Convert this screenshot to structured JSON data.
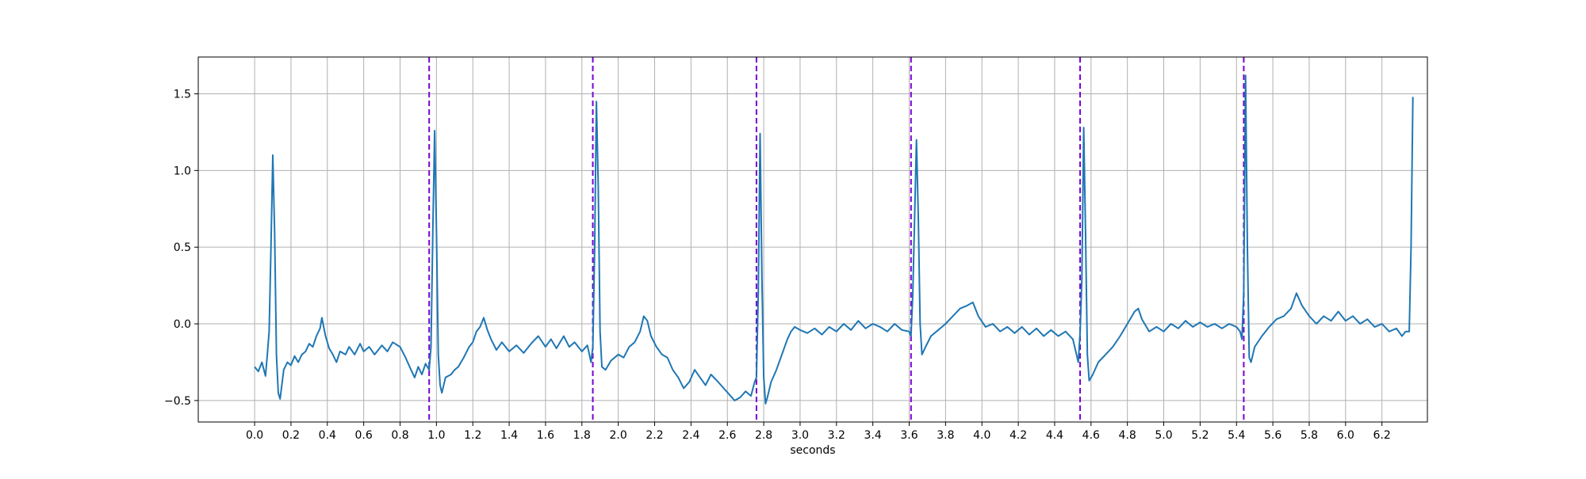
{
  "chart_data": {
    "type": "line",
    "title": "",
    "xlabel": "seconds",
    "ylabel": "",
    "xlim": [
      -0.31,
      6.45
    ],
    "ylim": [
      -0.64,
      1.74
    ],
    "grid": true,
    "xticks": [
      0.0,
      0.2,
      0.4,
      0.6,
      0.8,
      1.0,
      1.2,
      1.4,
      1.6,
      1.8,
      2.0,
      2.2,
      2.4,
      2.6,
      2.8,
      3.0,
      3.2,
      3.4,
      3.6,
      3.8,
      4.0,
      4.2,
      4.4,
      4.6,
      4.8,
      5.0,
      5.2,
      5.4,
      5.6,
      5.8,
      6.0,
      6.2
    ],
    "xtick_labels": [
      "0.0",
      "0.2",
      "0.4",
      "0.6",
      "0.8",
      "1.0",
      "1.2",
      "1.4",
      "1.6",
      "1.8",
      "2.0",
      "2.2",
      "2.4",
      "2.6",
      "2.8",
      "3.0",
      "3.2",
      "3.4",
      "3.6",
      "3.8",
      "4.0",
      "4.2",
      "4.4",
      "4.6",
      "4.8",
      "5.0",
      "5.2",
      "5.4",
      "5.6",
      "5.8",
      "6.0",
      "6.2"
    ],
    "yticks": [
      -0.5,
      0.0,
      0.5,
      1.0,
      1.5
    ],
    "ytick_labels": [
      "−0.5",
      "0.0",
      "0.5",
      "1.0",
      "1.5"
    ],
    "markers": {
      "style": "dashed",
      "color": "#7b00d4",
      "x": [
        0.96,
        1.86,
        2.76,
        3.61,
        4.54,
        5.44
      ]
    },
    "series": [
      {
        "color": "#1f77b4",
        "points": [
          [
            0.0,
            -0.28
          ],
          [
            0.02,
            -0.31
          ],
          [
            0.04,
            -0.25
          ],
          [
            0.06,
            -0.34
          ],
          [
            0.07,
            -0.2
          ],
          [
            0.08,
            -0.05
          ],
          [
            0.09,
            0.5
          ],
          [
            0.1,
            1.1
          ],
          [
            0.11,
            0.6
          ],
          [
            0.12,
            -0.2
          ],
          [
            0.13,
            -0.45
          ],
          [
            0.14,
            -0.49
          ],
          [
            0.16,
            -0.3
          ],
          [
            0.18,
            -0.25
          ],
          [
            0.2,
            -0.27
          ],
          [
            0.22,
            -0.21
          ],
          [
            0.24,
            -0.25
          ],
          [
            0.26,
            -0.2
          ],
          [
            0.28,
            -0.18
          ],
          [
            0.3,
            -0.13
          ],
          [
            0.32,
            -0.15
          ],
          [
            0.34,
            -0.08
          ],
          [
            0.36,
            -0.03
          ],
          [
            0.37,
            0.04
          ],
          [
            0.39,
            -0.08
          ],
          [
            0.41,
            -0.16
          ],
          [
            0.43,
            -0.2
          ],
          [
            0.45,
            -0.25
          ],
          [
            0.47,
            -0.18
          ],
          [
            0.5,
            -0.2
          ],
          [
            0.52,
            -0.15
          ],
          [
            0.55,
            -0.2
          ],
          [
            0.58,
            -0.13
          ],
          [
            0.6,
            -0.18
          ],
          [
            0.63,
            -0.15
          ],
          [
            0.66,
            -0.2
          ],
          [
            0.7,
            -0.14
          ],
          [
            0.73,
            -0.18
          ],
          [
            0.76,
            -0.12
          ],
          [
            0.8,
            -0.15
          ],
          [
            0.83,
            -0.22
          ],
          [
            0.86,
            -0.3
          ],
          [
            0.88,
            -0.35
          ],
          [
            0.9,
            -0.28
          ],
          [
            0.92,
            -0.33
          ],
          [
            0.94,
            -0.26
          ],
          [
            0.96,
            -0.3
          ],
          [
            0.97,
            -0.15
          ],
          [
            0.98,
            0.6
          ],
          [
            0.99,
            1.26
          ],
          [
            1.0,
            0.6
          ],
          [
            1.01,
            -0.2
          ],
          [
            1.02,
            -0.4
          ],
          [
            1.03,
            -0.45
          ],
          [
            1.05,
            -0.35
          ],
          [
            1.08,
            -0.33
          ],
          [
            1.1,
            -0.3
          ],
          [
            1.12,
            -0.28
          ],
          [
            1.15,
            -0.22
          ],
          [
            1.18,
            -0.15
          ],
          [
            1.2,
            -0.12
          ],
          [
            1.22,
            -0.05
          ],
          [
            1.24,
            -0.02
          ],
          [
            1.26,
            0.04
          ],
          [
            1.28,
            -0.04
          ],
          [
            1.3,
            -0.1
          ],
          [
            1.33,
            -0.17
          ],
          [
            1.36,
            -0.12
          ],
          [
            1.4,
            -0.18
          ],
          [
            1.44,
            -0.14
          ],
          [
            1.48,
            -0.19
          ],
          [
            1.52,
            -0.13
          ],
          [
            1.56,
            -0.08
          ],
          [
            1.6,
            -0.15
          ],
          [
            1.63,
            -0.1
          ],
          [
            1.66,
            -0.16
          ],
          [
            1.7,
            -0.08
          ],
          [
            1.73,
            -0.15
          ],
          [
            1.76,
            -0.12
          ],
          [
            1.8,
            -0.18
          ],
          [
            1.83,
            -0.14
          ],
          [
            1.85,
            -0.25
          ],
          [
            1.86,
            -0.15
          ],
          [
            1.87,
            0.5
          ],
          [
            1.88,
            1.45
          ],
          [
            1.89,
            0.9
          ],
          [
            1.9,
            -0.05
          ],
          [
            1.91,
            -0.28
          ],
          [
            1.93,
            -0.3
          ],
          [
            1.96,
            -0.24
          ],
          [
            2.0,
            -0.2
          ],
          [
            2.03,
            -0.22
          ],
          [
            2.06,
            -0.15
          ],
          [
            2.09,
            -0.12
          ],
          [
            2.12,
            -0.05
          ],
          [
            2.14,
            0.05
          ],
          [
            2.16,
            0.02
          ],
          [
            2.18,
            -0.08
          ],
          [
            2.21,
            -0.15
          ],
          [
            2.24,
            -0.2
          ],
          [
            2.27,
            -0.22
          ],
          [
            2.3,
            -0.3
          ],
          [
            2.33,
            -0.35
          ],
          [
            2.36,
            -0.42
          ],
          [
            2.39,
            -0.38
          ],
          [
            2.42,
            -0.3
          ],
          [
            2.45,
            -0.35
          ],
          [
            2.48,
            -0.4
          ],
          [
            2.51,
            -0.33
          ],
          [
            2.55,
            -0.38
          ],
          [
            2.58,
            -0.42
          ],
          [
            2.61,
            -0.46
          ],
          [
            2.64,
            -0.5
          ],
          [
            2.67,
            -0.48
          ],
          [
            2.7,
            -0.44
          ],
          [
            2.73,
            -0.47
          ],
          [
            2.75,
            -0.38
          ],
          [
            2.76,
            -0.35
          ],
          [
            2.77,
            0.2
          ],
          [
            2.78,
            1.24
          ],
          [
            2.79,
            0.3
          ],
          [
            2.8,
            -0.35
          ],
          [
            2.81,
            -0.52
          ],
          [
            2.82,
            -0.48
          ],
          [
            2.84,
            -0.38
          ],
          [
            2.87,
            -0.3
          ],
          [
            2.9,
            -0.2
          ],
          [
            2.93,
            -0.1
          ],
          [
            2.95,
            -0.05
          ],
          [
            2.97,
            -0.02
          ],
          [
            3.0,
            -0.04
          ],
          [
            3.04,
            -0.06
          ],
          [
            3.08,
            -0.03
          ],
          [
            3.12,
            -0.07
          ],
          [
            3.16,
            -0.02
          ],
          [
            3.2,
            -0.05
          ],
          [
            3.24,
            0.0
          ],
          [
            3.28,
            -0.04
          ],
          [
            3.32,
            0.02
          ],
          [
            3.36,
            -0.03
          ],
          [
            3.4,
            0.0
          ],
          [
            3.44,
            -0.02
          ],
          [
            3.48,
            -0.05
          ],
          [
            3.52,
            0.0
          ],
          [
            3.56,
            -0.04
          ],
          [
            3.6,
            -0.05
          ],
          [
            3.61,
            -0.08
          ],
          [
            3.62,
            0.2
          ],
          [
            3.63,
            0.7
          ],
          [
            3.64,
            1.2
          ],
          [
            3.65,
            0.7
          ],
          [
            3.66,
            0.0
          ],
          [
            3.67,
            -0.2
          ],
          [
            3.69,
            -0.15
          ],
          [
            3.72,
            -0.08
          ],
          [
            3.76,
            -0.04
          ],
          [
            3.8,
            0.0
          ],
          [
            3.84,
            0.05
          ],
          [
            3.88,
            0.1
          ],
          [
            3.92,
            0.12
          ],
          [
            3.95,
            0.14
          ],
          [
            3.98,
            0.05
          ],
          [
            4.02,
            -0.02
          ],
          [
            4.06,
            0.0
          ],
          [
            4.1,
            -0.05
          ],
          [
            4.14,
            -0.02
          ],
          [
            4.18,
            -0.06
          ],
          [
            4.22,
            -0.02
          ],
          [
            4.26,
            -0.07
          ],
          [
            4.3,
            -0.03
          ],
          [
            4.34,
            -0.08
          ],
          [
            4.38,
            -0.04
          ],
          [
            4.42,
            -0.08
          ],
          [
            4.46,
            -0.05
          ],
          [
            4.5,
            -0.1
          ],
          [
            4.53,
            -0.25
          ],
          [
            4.54,
            -0.05
          ],
          [
            4.55,
            0.3
          ],
          [
            4.56,
            1.28
          ],
          [
            4.57,
            0.6
          ],
          [
            4.58,
            -0.2
          ],
          [
            4.59,
            -0.37
          ],
          [
            4.61,
            -0.33
          ],
          [
            4.64,
            -0.25
          ],
          [
            4.68,
            -0.2
          ],
          [
            4.72,
            -0.15
          ],
          [
            4.76,
            -0.08
          ],
          [
            4.8,
            0.0
          ],
          [
            4.84,
            0.08
          ],
          [
            4.86,
            0.1
          ],
          [
            4.88,
            0.03
          ],
          [
            4.92,
            -0.05
          ],
          [
            4.96,
            -0.02
          ],
          [
            5.0,
            -0.05
          ],
          [
            5.04,
            0.0
          ],
          [
            5.08,
            -0.03
          ],
          [
            5.12,
            0.02
          ],
          [
            5.16,
            -0.02
          ],
          [
            5.2,
            0.01
          ],
          [
            5.24,
            -0.02
          ],
          [
            5.28,
            0.0
          ],
          [
            5.32,
            -0.03
          ],
          [
            5.36,
            0.0
          ],
          [
            5.4,
            -0.02
          ],
          [
            5.42,
            -0.05
          ],
          [
            5.43,
            -0.1
          ],
          [
            5.44,
            0.2
          ],
          [
            5.45,
            1.62
          ],
          [
            5.46,
            0.5
          ],
          [
            5.47,
            -0.22
          ],
          [
            5.48,
            -0.25
          ],
          [
            5.5,
            -0.15
          ],
          [
            5.54,
            -0.08
          ],
          [
            5.58,
            -0.02
          ],
          [
            5.62,
            0.03
          ],
          [
            5.66,
            0.05
          ],
          [
            5.7,
            0.1
          ],
          [
            5.73,
            0.2
          ],
          [
            5.76,
            0.12
          ],
          [
            5.8,
            0.05
          ],
          [
            5.84,
            0.0
          ],
          [
            5.88,
            0.05
          ],
          [
            5.92,
            0.02
          ],
          [
            5.96,
            0.08
          ],
          [
            6.0,
            0.02
          ],
          [
            6.04,
            0.05
          ],
          [
            6.08,
            0.0
          ],
          [
            6.12,
            0.03
          ],
          [
            6.16,
            -0.02
          ],
          [
            6.2,
            0.0
          ],
          [
            6.24,
            -0.05
          ],
          [
            6.28,
            -0.03
          ],
          [
            6.31,
            -0.08
          ],
          [
            6.33,
            -0.05
          ],
          [
            6.35,
            -0.05
          ],
          [
            6.36,
            0.5
          ],
          [
            6.37,
            1.48
          ]
        ]
      }
    ]
  }
}
